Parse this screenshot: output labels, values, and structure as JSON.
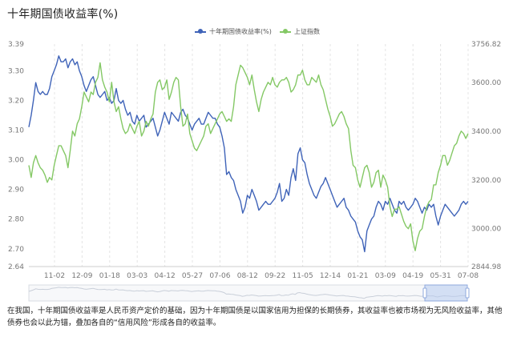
{
  "chart_data": {
    "type": "line",
    "title": "十年期国债收益率(%)",
    "legend": {
      "placement": "top-center",
      "items": [
        "十年期国债收益率(%)",
        "上证指数"
      ]
    },
    "x_tick_labels": [
      "11-02",
      "12-09",
      "01-18",
      "03-03",
      "04-12",
      "05-27",
      "07-06",
      "08-12",
      "09-22",
      "11-05",
      "12-14",
      "01-21",
      "03-09",
      "04-19",
      "05-31",
      "07-08"
    ],
    "y_left": {
      "ticks": [
        "3.39",
        "3.30",
        "3.20",
        "3.10",
        "3.00",
        "2.90",
        "2.80",
        "2.70",
        "2.64"
      ],
      "range": [
        2.64,
        3.39
      ]
    },
    "y_right": {
      "ticks": [
        "3756.82",
        "3600.00",
        "3400.00",
        "3200.00",
        "3000.00",
        "2844.98"
      ],
      "range": [
        2844.98,
        3756.82
      ]
    },
    "grid": "vertical dashed",
    "series": [
      {
        "name": "十年期国债收益率(%)",
        "color": "#3f63b8",
        "axis": "left",
        "values": [
          3.11,
          3.15,
          3.2,
          3.26,
          3.23,
          3.22,
          3.23,
          3.22,
          3.22,
          3.24,
          3.28,
          3.3,
          3.32,
          3.35,
          3.33,
          3.33,
          3.34,
          3.31,
          3.33,
          3.34,
          3.32,
          3.33,
          3.3,
          3.28,
          3.25,
          3.23,
          3.25,
          3.27,
          3.28,
          3.25,
          3.22,
          3.21,
          3.22,
          3.23,
          3.2,
          3.21,
          3.19,
          3.2,
          3.24,
          3.2,
          3.19,
          3.2,
          3.17,
          3.15,
          3.16,
          3.13,
          3.12,
          3.15,
          3.13,
          3.14,
          3.15,
          3.11,
          3.12,
          3.13,
          3.14,
          3.11,
          3.08,
          3.1,
          3.13,
          3.16,
          3.14,
          3.12,
          3.16,
          3.15,
          3.14,
          3.13,
          3.16,
          3.17,
          3.15,
          3.14,
          3.12,
          3.1,
          3.12,
          3.13,
          3.14,
          3.12,
          3.12,
          3.14,
          3.16,
          3.15,
          3.14,
          3.14,
          3.12,
          3.11,
          3.08,
          3.04,
          2.95,
          2.96,
          2.94,
          2.93,
          2.9,
          2.88,
          2.86,
          2.82,
          2.84,
          2.88,
          2.87,
          2.9,
          2.88,
          2.86,
          2.83,
          2.84,
          2.85,
          2.86,
          2.85,
          2.85,
          2.86,
          2.87,
          2.89,
          2.92,
          2.86,
          2.87,
          2.9,
          2.88,
          2.94,
          2.97,
          2.93,
          3.02,
          3.04,
          3.0,
          2.99,
          2.95,
          2.92,
          2.9,
          2.88,
          2.87,
          2.89,
          2.91,
          2.92,
          2.94,
          2.92,
          2.9,
          2.88,
          2.86,
          2.84,
          2.85,
          2.86,
          2.87,
          2.84,
          2.83,
          2.81,
          2.8,
          2.79,
          2.76,
          2.74,
          2.73,
          2.69,
          2.76,
          2.78,
          2.8,
          2.81,
          2.84,
          2.86,
          2.85,
          2.83,
          2.86,
          2.85,
          2.87,
          2.85,
          2.83,
          2.82,
          2.86,
          2.85,
          2.86,
          2.84,
          2.83,
          2.84,
          2.85,
          2.87,
          2.86,
          2.84,
          2.82,
          2.84,
          2.83,
          2.85,
          2.84,
          2.85,
          2.81,
          2.78,
          2.81,
          2.83,
          2.85,
          2.84,
          2.83,
          2.82,
          2.81,
          2.82,
          2.83,
          2.85,
          2.86,
          2.85,
          2.86
        ]
      },
      {
        "name": "上证指数",
        "color": "#84c865",
        "axis": "right",
        "values": [
          3260,
          3210,
          3270,
          3300,
          3270,
          3250,
          3240,
          3220,
          3190,
          3210,
          3200,
          3260,
          3300,
          3340,
          3340,
          3320,
          3300,
          3250,
          3320,
          3400,
          3380,
          3430,
          3450,
          3500,
          3560,
          3540,
          3520,
          3560,
          3550,
          3600,
          3620,
          3680,
          3610,
          3580,
          3560,
          3520,
          3600,
          3520,
          3480,
          3500,
          3450,
          3410,
          3390,
          3400,
          3430,
          3410,
          3390,
          3420,
          3440,
          3380,
          3400,
          3440,
          3420,
          3450,
          3470,
          3560,
          3600,
          3610,
          3570,
          3580,
          3610,
          3530,
          3560,
          3600,
          3620,
          3610,
          3500,
          3420,
          3430,
          3470,
          3390,
          3360,
          3330,
          3320,
          3340,
          3360,
          3380,
          3420,
          3430,
          3390,
          3410,
          3430,
          3450,
          3470,
          3480,
          3460,
          3440,
          3450,
          3440,
          3500,
          3590,
          3630,
          3670,
          3660,
          3640,
          3620,
          3590,
          3630,
          3570,
          3520,
          3480,
          3530,
          3560,
          3580,
          3600,
          3590,
          3620,
          3590,
          3580,
          3600,
          3610,
          3610,
          3620,
          3600,
          3560,
          3570,
          3590,
          3630,
          3630,
          3650,
          3610,
          3590,
          3590,
          3620,
          3610,
          3600,
          3630,
          3590,
          3570,
          3530,
          3490,
          3460,
          3420,
          3430,
          3450,
          3470,
          3480,
          3460,
          3430,
          3410,
          3320,
          3260,
          3250,
          3200,
          3170,
          3210,
          3250,
          3260,
          3230,
          3170,
          3190,
          3230,
          3240,
          3170,
          3220,
          3200,
          3170,
          3090,
          3050,
          3080,
          3080,
          3090,
          3060,
          3030,
          3010,
          3000,
          3020,
          2950,
          2910,
          2960,
          2990,
          3000,
          3050,
          3090,
          3110,
          3120,
          3180,
          3180,
          3230,
          3260,
          3300,
          3300,
          3260,
          3280,
          3310,
          3340,
          3350,
          3380,
          3400,
          3390,
          3370,
          3390
        ]
      }
    ]
  },
  "note": "在我国，十年期国债收益率是人民币资产定价的基础，因为十年期国债是以国家信用为担保的长期债券，其收益率也被市场视为无风险收益率，其他债券也会以此为锚，叠加各自的“信用风险”形成各自的收益率。"
}
